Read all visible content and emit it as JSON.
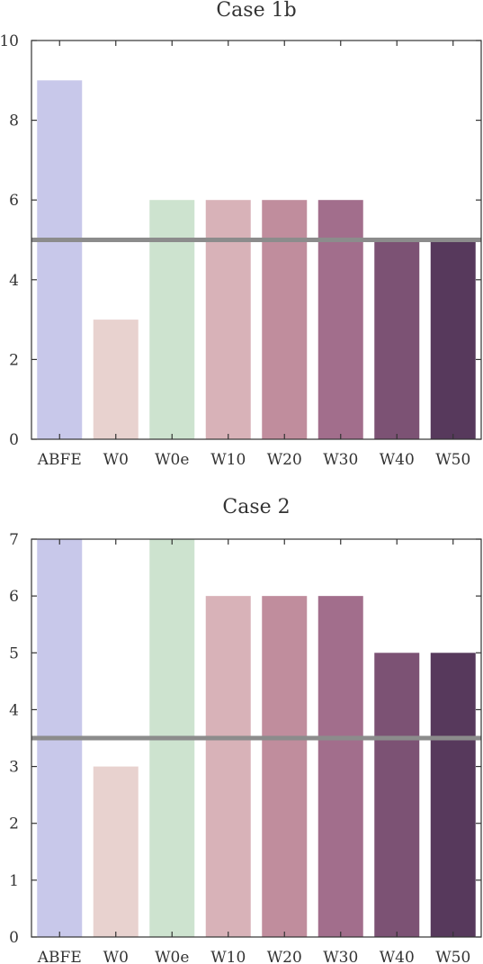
{
  "chart_data": [
    {
      "type": "bar",
      "title": "Case 1b",
      "categories": [
        "ABFE",
        "W0",
        "W0e",
        "W10",
        "W20",
        "W30",
        "W40",
        "W50"
      ],
      "values": [
        9,
        3,
        6,
        6,
        6,
        6,
        5,
        5
      ],
      "ylim": [
        0,
        10
      ],
      "yticks": [
        "0",
        "2",
        "4",
        "6",
        "8",
        "10"
      ],
      "reference_line": 5,
      "grid": false
    },
    {
      "type": "bar",
      "title": "Case 2",
      "categories": [
        "ABFE",
        "W0",
        "W0e",
        "W10",
        "W20",
        "W30",
        "W40",
        "W50"
      ],
      "values": [
        7,
        3,
        7,
        6,
        6,
        6,
        5,
        5
      ],
      "ylim": [
        0,
        7
      ],
      "yticks": [
        "0",
        "1",
        "2",
        "3",
        "4",
        "5",
        "6",
        "7"
      ],
      "reference_line": 3.5,
      "grid": false
    }
  ],
  "colors": {
    "bars": [
      "#c8c8ea",
      "#e8d2cf",
      "#cde3cf",
      "#d8b2b8",
      "#c08d9d",
      "#a26e8c",
      "#7c5274",
      "#57395c"
    ],
    "reference_line": "#8c8c8c",
    "axis": "#333333"
  }
}
